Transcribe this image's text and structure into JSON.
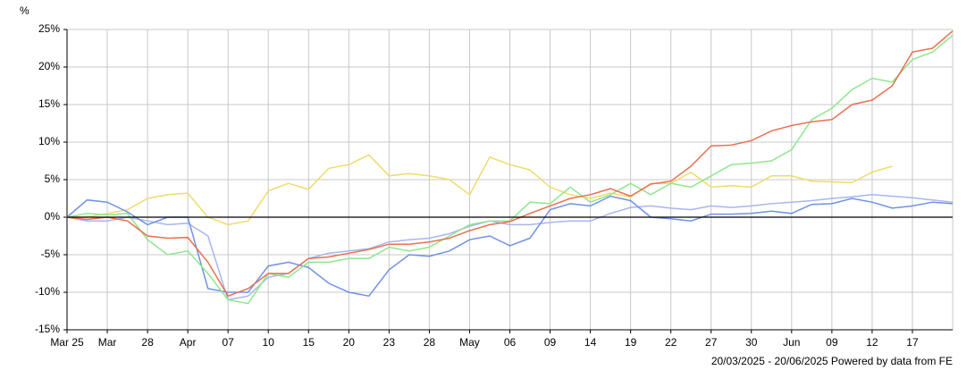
{
  "chart_data": {
    "type": "line",
    "y_unit": "%",
    "footer": "20/03/2025 - 20/06/2025 Powered by data from FE",
    "categories": [
      "Mar 25",
      null,
      "Mar",
      null,
      "28",
      null,
      "Apr",
      null,
      "07",
      null,
      "10",
      null,
      "15",
      null,
      "20",
      null,
      "23",
      null,
      "28",
      null,
      "May",
      null,
      "06",
      null,
      "09",
      null,
      "14",
      null,
      "19",
      null,
      "22",
      null,
      "27",
      null,
      "30",
      null,
      "Jun",
      null,
      "09",
      null,
      "12",
      null,
      "17",
      null,
      null
    ],
    "ylim": [
      -15,
      25
    ],
    "yticks": [
      {
        "value": 25,
        "label": "25%"
      },
      {
        "value": 20,
        "label": "20%"
      },
      {
        "value": 15,
        "label": "15%"
      },
      {
        "value": 10,
        "label": "10%"
      },
      {
        "value": 5,
        "label": "5%"
      },
      {
        "value": 0,
        "label": "0%"
      },
      {
        "value": -5,
        "label": "-5%"
      },
      {
        "value": -10,
        "label": "-10%"
      },
      {
        "value": -15,
        "label": "-15%"
      }
    ],
    "grid": true,
    "zero_line_color": "#000000",
    "series": [
      {
        "color": "#a9b6ef",
        "values": [
          0,
          -0.5,
          -0.5,
          0,
          -0.5,
          -1,
          -0.8,
          -2.5,
          -11,
          -10.5,
          -8,
          -7.5,
          -5.5,
          -4.8,
          -4.5,
          -4.2,
          -3.3,
          -3,
          -2.8,
          -2.2,
          -1.2,
          -0.5,
          -1,
          -1,
          -0.7,
          -0.5,
          -0.5,
          0.5,
          1.3,
          1.5,
          1.2,
          1,
          1.5,
          1.3,
          1.5,
          1.8,
          2,
          2.2,
          2.5,
          2.7,
          3,
          2.8,
          2.6,
          2.3,
          2
        ]
      },
      {
        "color": "#eedc6a",
        "values": [
          0,
          0,
          0.5,
          1,
          2.5,
          3,
          3.2,
          0,
          -1,
          -0.5,
          3.5,
          4.5,
          3.7,
          6.5,
          7,
          8.3,
          5.5,
          5.8,
          5.5,
          5,
          3,
          8,
          7,
          6.3,
          4,
          3,
          2.5,
          3.2,
          2.7,
          4.5,
          4.5,
          6,
          4,
          4.2,
          4,
          5.5,
          5.5,
          4.8,
          4.7,
          4.6,
          6,
          6.8,
          null,
          null,
          null
        ]
      },
      {
        "color": "#6f92e6",
        "values": [
          0,
          2.3,
          2,
          0.7,
          -1,
          0,
          0,
          -9.5,
          -10,
          -10,
          -6.5,
          -6,
          -6.7,
          -8.8,
          -10,
          -10.5,
          -7,
          -5,
          -5.2,
          -4.5,
          -3,
          -2.5,
          -3.8,
          -2.8,
          1,
          1.8,
          1.5,
          2.8,
          2.2,
          0,
          -0.2,
          -0.5,
          0.4,
          0.4,
          0.5,
          0.8,
          0.5,
          1.7,
          1.8,
          2.5,
          2,
          1.2,
          1.5,
          2,
          1.8
        ]
      },
      {
        "color": "#8fe68f",
        "values": [
          0,
          0.5,
          0.3,
          0.5,
          -3,
          -5,
          -4.5,
          -7.5,
          -11,
          -11.5,
          -7.5,
          -8,
          -6,
          -6,
          -5.5,
          -5.5,
          -4,
          -4.5,
          -4,
          -2.5,
          -1,
          -0.5,
          -0.5,
          2,
          1.8,
          4,
          2,
          3,
          4.5,
          3,
          4.5,
          4,
          5.5,
          7,
          7.2,
          7.5,
          9,
          13,
          14.5,
          17,
          18.5,
          18,
          21,
          22,
          24.2
        ]
      },
      {
        "color": "#e8714f",
        "values": [
          0,
          -0.3,
          0,
          -0.5,
          -2.5,
          -2.8,
          -2.7,
          -6,
          -10.5,
          -9.5,
          -7.5,
          -7.5,
          -5.5,
          -5.3,
          -4.8,
          -4.3,
          -3.6,
          -3.6,
          -3.3,
          -2.8,
          -1.8,
          -1,
          -0.6,
          0.5,
          1.5,
          2.5,
          3,
          3.8,
          2.8,
          4.4,
          4.8,
          6.8,
          9.5,
          9.6,
          10.2,
          11.5,
          12.2,
          12.7,
          13,
          15,
          15.6,
          17.5,
          22,
          22.5,
          24.8
        ]
      }
    ]
  }
}
